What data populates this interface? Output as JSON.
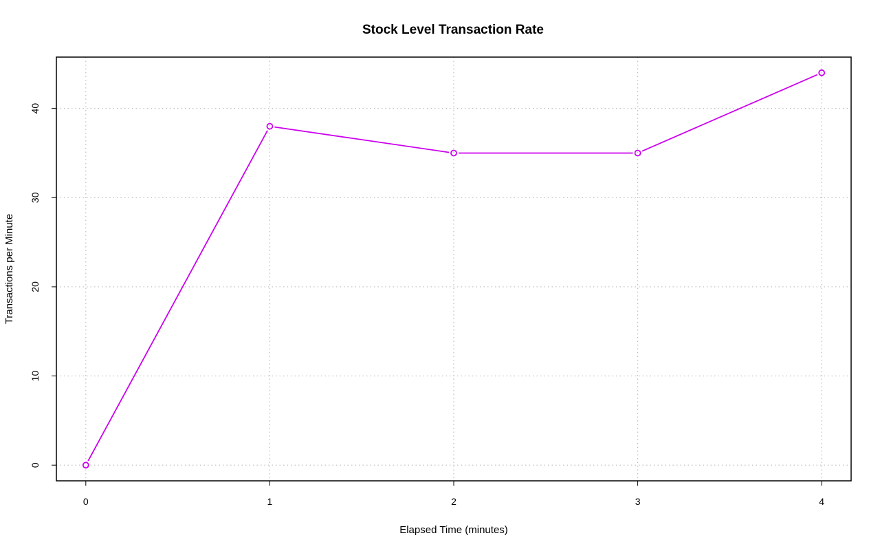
{
  "chart_data": {
    "type": "line",
    "title": "Stock Level Transaction Rate",
    "xlabel": "Elapsed Time (minutes)",
    "ylabel": "Transactions per Minute",
    "x": [
      0,
      1,
      2,
      3,
      4
    ],
    "series": [
      {
        "values": [
          0,
          38,
          35,
          35,
          44
        ],
        "color": "#cc00ee",
        "marker": "open-circle"
      }
    ],
    "xticks": [
      0,
      1,
      2,
      3,
      4
    ],
    "yticks": [
      0,
      10,
      20,
      30,
      40
    ],
    "xlim": [
      -0.16,
      4.16
    ],
    "ylim": [
      -1.76,
      45.76
    ],
    "grid": true,
    "grid_color": "#bbbbbb"
  }
}
